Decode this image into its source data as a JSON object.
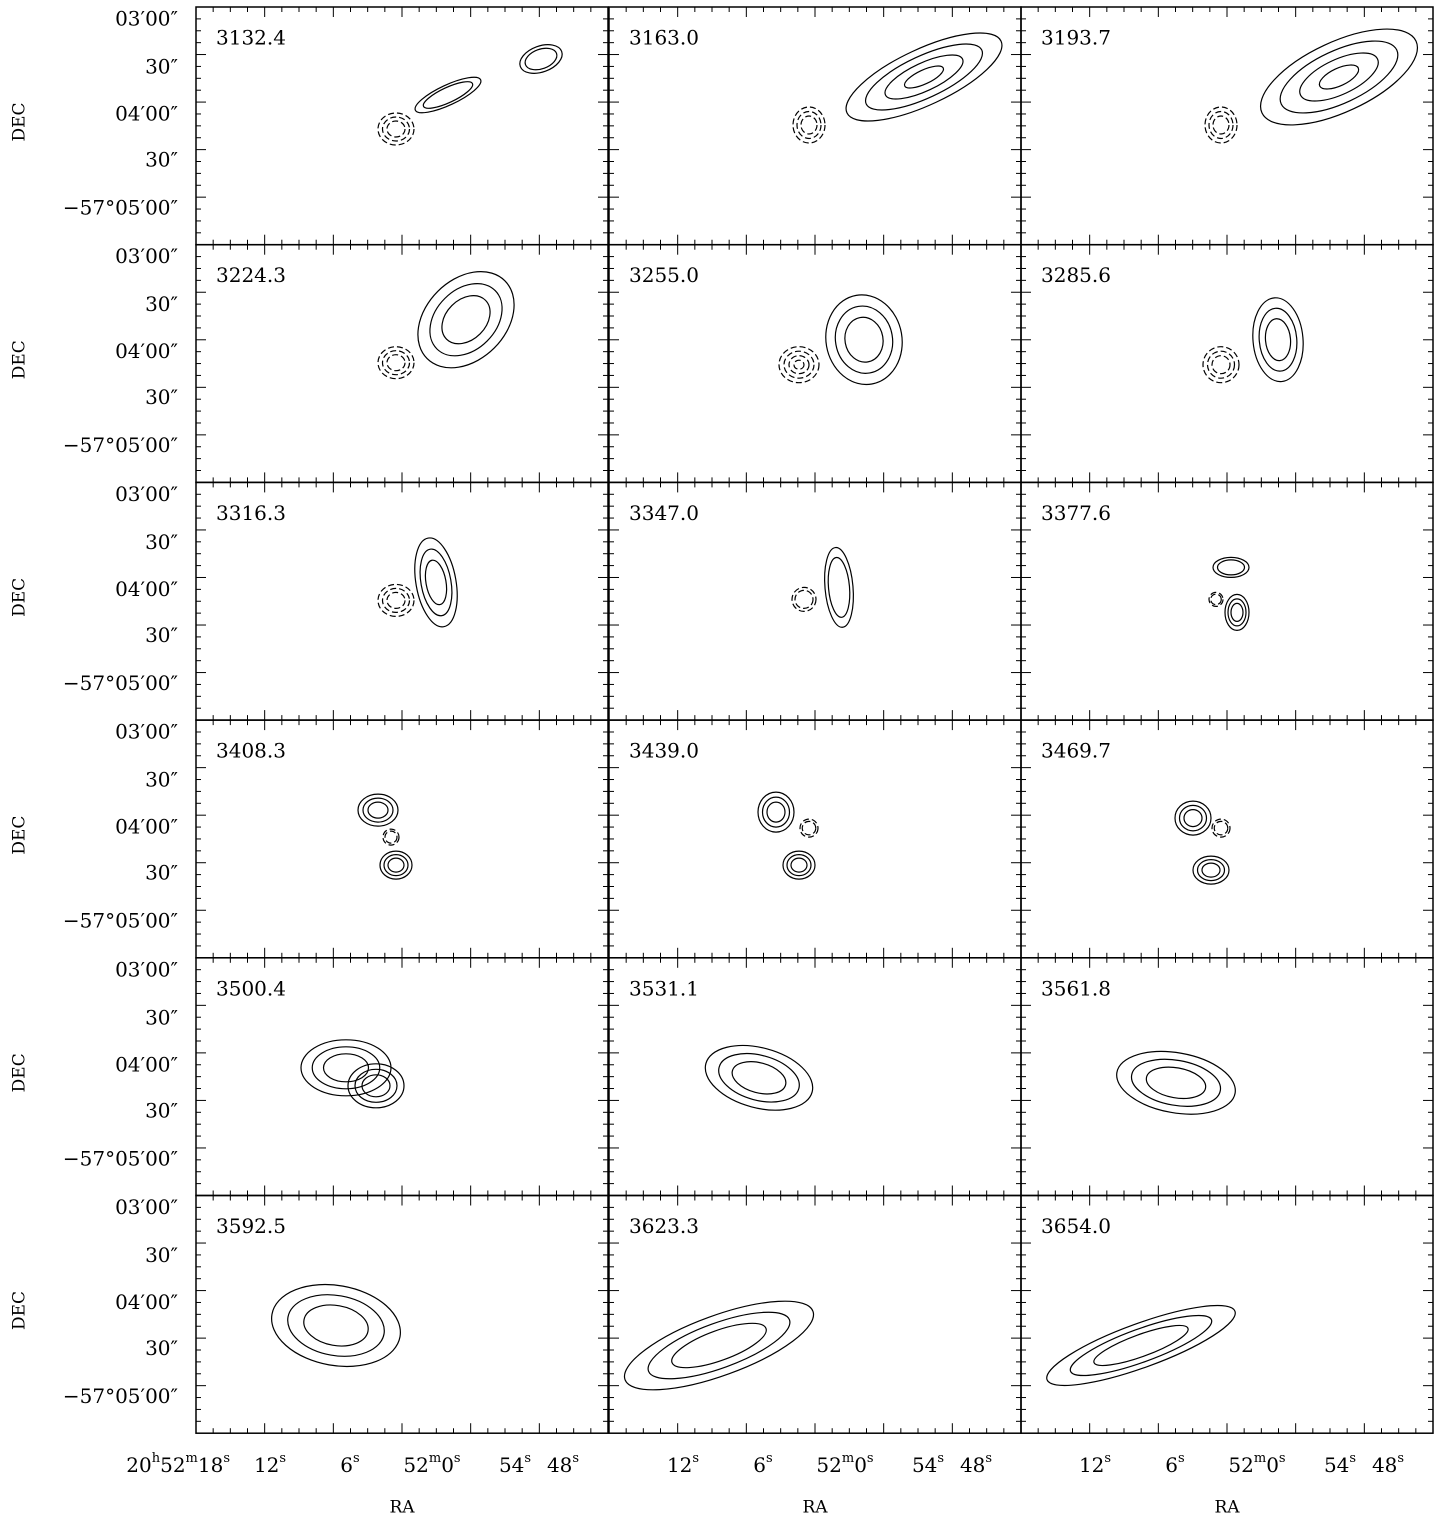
{
  "dec_axis_label": "DEC",
  "ra_axis_label": "RA",
  "dec_ticks": [
    "03′00″",
    "30″",
    "04′00″",
    "30″",
    "−57°05′00″"
  ],
  "ra_ticks": [
    [
      [
        [
          "20",
          "h"
        ],
        [
          "52",
          "m"
        ],
        [
          "18",
          "s"
        ]
      ],
      [
        [
          "12",
          "s"
        ]
      ],
      [
        [
          "6",
          "s"
        ]
      ],
      [
        [
          "52",
          "m"
        ],
        [
          "0",
          "s"
        ]
      ],
      [
        [
          "54",
          "s"
        ]
      ],
      [
        [
          "48",
          "s"
        ]
      ]
    ],
    [
      [
        [
          "12",
          "s"
        ]
      ],
      [
        [
          "6",
          "s"
        ]
      ],
      [
        [
          "52",
          "m"
        ],
        [
          "0",
          "s"
        ]
      ],
      [
        [
          "54",
          "s"
        ]
      ],
      [
        [
          "48",
          "s"
        ]
      ]
    ],
    [
      [
        [
          "12",
          "s"
        ]
      ],
      [
        [
          "6",
          "s"
        ]
      ],
      [
        [
          "52",
          "m"
        ],
        [
          "0",
          "s"
        ]
      ],
      [
        [
          "54",
          "s"
        ]
      ],
      [
        [
          "48",
          "s"
        ]
      ]
    ]
  ],
  "panels": [
    "3132.4",
    "3163.0",
    "3193.7",
    "3224.3",
    "3255.0",
    "3285.6",
    "3316.3",
    "3347.0",
    "3377.6",
    "3408.3",
    "3439.0",
    "3469.7",
    "3500.4",
    "3531.1",
    "3561.8",
    "3592.5",
    "3623.3",
    "3654.0"
  ]
}
